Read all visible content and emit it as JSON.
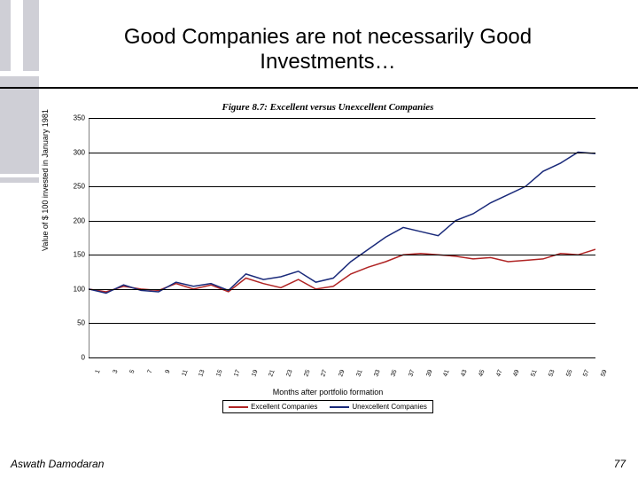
{
  "slide": {
    "title": "Good Companies are not necessarily Good Investments…",
    "author": "Aswath Damodaran",
    "page_number": "77"
  },
  "chart": {
    "type": "line",
    "title": "Figure 8.7: Excellent versus Unexcellent Companies",
    "ylabel": "Value of $ 100 invested in January 1981",
    "xlabel": "Months after portfolio formation",
    "ylim": [
      0,
      350
    ],
    "ytick_step": 50,
    "yticks": [
      0,
      50,
      100,
      150,
      200,
      250,
      300,
      350
    ],
    "x_values": [
      1,
      3,
      5,
      7,
      9,
      11,
      13,
      15,
      17,
      19,
      21,
      23,
      25,
      27,
      29,
      31,
      33,
      35,
      37,
      39,
      41,
      43,
      45,
      47,
      49,
      51,
      53,
      55,
      57,
      59
    ],
    "background_color": "#ffffff",
    "grid_color": "#000000",
    "tick_fontsize": 8,
    "label_fontsize": 9,
    "title_fontsize": 11,
    "line_width": 1.5,
    "series": [
      {
        "name": "Excellent Companies",
        "color": "#b02424",
        "values": [
          100,
          96,
          104,
          100,
          98,
          108,
          100,
          106,
          96,
          116,
          108,
          102,
          114,
          100,
          104,
          122,
          132,
          140,
          150,
          152,
          150,
          148,
          144,
          146,
          140,
          142,
          144,
          152,
          150,
          158
        ]
      },
      {
        "name": "Unexcellent Companies",
        "color": "#1a2a7a",
        "values": [
          100,
          94,
          106,
          98,
          96,
          110,
          104,
          108,
          98,
          122,
          114,
          118,
          126,
          110,
          116,
          140,
          158,
          176,
          190,
          184,
          178,
          200,
          210,
          226,
          238,
          250,
          272,
          284,
          300,
          298
        ]
      }
    ],
    "legend": {
      "items": [
        "Excellent Companies",
        "Unexcellent Companies"
      ]
    }
  }
}
